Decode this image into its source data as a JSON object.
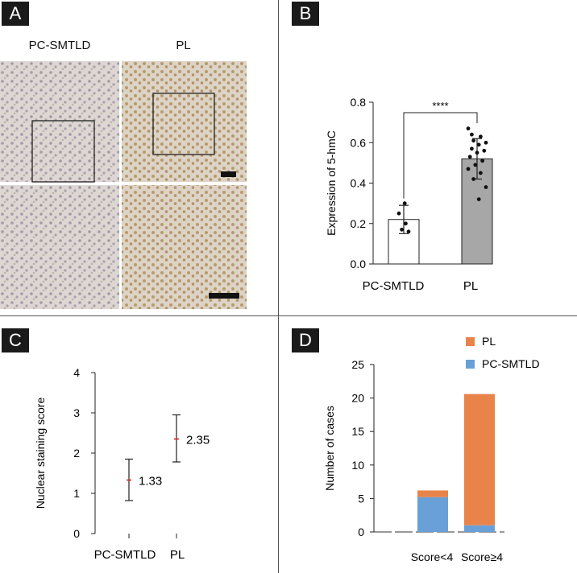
{
  "panels": {
    "a": {
      "label": "A",
      "col_titles": [
        "PC-SMTLD",
        "PL"
      ]
    },
    "b": {
      "label": "B",
      "significance": "****"
    },
    "c": {
      "label": "C"
    },
    "d": {
      "label": "D"
    }
  },
  "colors": {
    "pl_bar": "#a7a7a7",
    "pc_bar": "#ffffff",
    "error_red": "#e0231c",
    "orange": "#e8844a",
    "blue": "#6aa0d8",
    "tissue_bg": "#ddd6d2",
    "nuclei_pc": "#8f8697",
    "nuclei_pl": "#b1935a"
  },
  "chart_data": [
    {
      "id": "B",
      "type": "bar",
      "categories": [
        "PC-SMTLD",
        "PL"
      ],
      "values": [
        0.22,
        0.52
      ],
      "errors": [
        0.07,
        0.1
      ],
      "ylabel": "Expression of 5-hmC",
      "ylim": [
        0,
        0.8
      ],
      "yticks": [
        "0.0",
        "0.2",
        "0.4",
        "0.6",
        "0.8"
      ],
      "ytick_values": [
        0,
        0.2,
        0.4,
        0.6,
        0.8
      ],
      "points": [
        [
          0.25,
          0.2,
          0.17,
          0.16,
          0.3
        ],
        [
          0.67,
          0.63,
          0.61,
          0.6,
          0.59,
          0.57,
          0.56,
          0.55,
          0.53,
          0.51,
          0.49,
          0.47,
          0.45,
          0.42,
          0.38,
          0.32,
          0.64
        ]
      ],
      "grid": false
    },
    {
      "id": "C",
      "type": "scatter",
      "categories": [
        "PC-SMTLD",
        "PL"
      ],
      "means": [
        1.33,
        2.35
      ],
      "lower": [
        0.82,
        1.78
      ],
      "upper": [
        1.85,
        2.95
      ],
      "labels": [
        "1.33",
        "2.35"
      ],
      "ylabel": "Nuclear staining score",
      "ylim": [
        0,
        4
      ],
      "yticks": [
        "0",
        "1",
        "2",
        "3",
        "4"
      ],
      "ytick_values": [
        0,
        1,
        2,
        3,
        4
      ],
      "grid": false
    },
    {
      "id": "D",
      "type": "bar",
      "stacked": true,
      "categories": [
        "Score<4",
        "Score≥4"
      ],
      "series": [
        {
          "name": "PC-SMTLD",
          "values": [
            5.2,
            1
          ]
        },
        {
          "name": "PL",
          "values": [
            1,
            19.6
          ]
        }
      ],
      "ylabel": "Number of cases",
      "ylim": [
        0,
        25
      ],
      "yticks": [
        "0",
        "5",
        "10",
        "15",
        "20",
        "25"
      ],
      "ytick_values": [
        0,
        5,
        10,
        15,
        20,
        25
      ],
      "legend": "top-right",
      "grid": false
    }
  ]
}
